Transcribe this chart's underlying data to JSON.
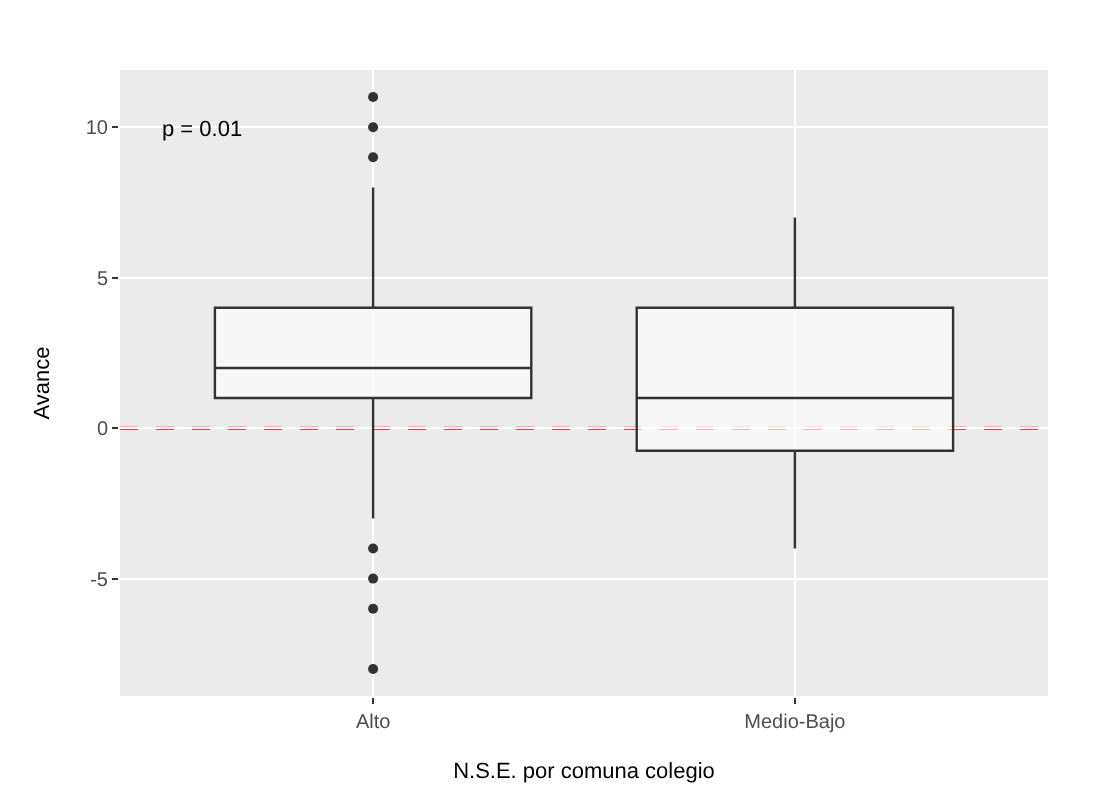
{
  "chart_data": {
    "type": "box",
    "xlabel": "N.S.E. por comuna colegio",
    "ylabel": "Avance",
    "categories": [
      "Alto",
      "Medio-Bajo"
    ],
    "boxes": [
      {
        "low": -3,
        "q1": 1,
        "median": 2,
        "q3": 4,
        "high": 8,
        "outliers": [
          11,
          10,
          9,
          -4,
          -5,
          -6,
          -8
        ]
      },
      {
        "low": -4,
        "q1": -0.75,
        "median": 1,
        "q3": 4,
        "high": 7
      }
    ],
    "color": "#333333",
    "ylim": [
      -8.9,
      11.9
    ],
    "yticks": [
      -5,
      0,
      5,
      10
    ],
    "grid": true,
    "ref_lines": [
      {
        "axis": "y",
        "value": 0,
        "color": "#ff0000",
        "line_style": "dashed"
      }
    ],
    "annotations": [
      "p = 0.01"
    ]
  }
}
